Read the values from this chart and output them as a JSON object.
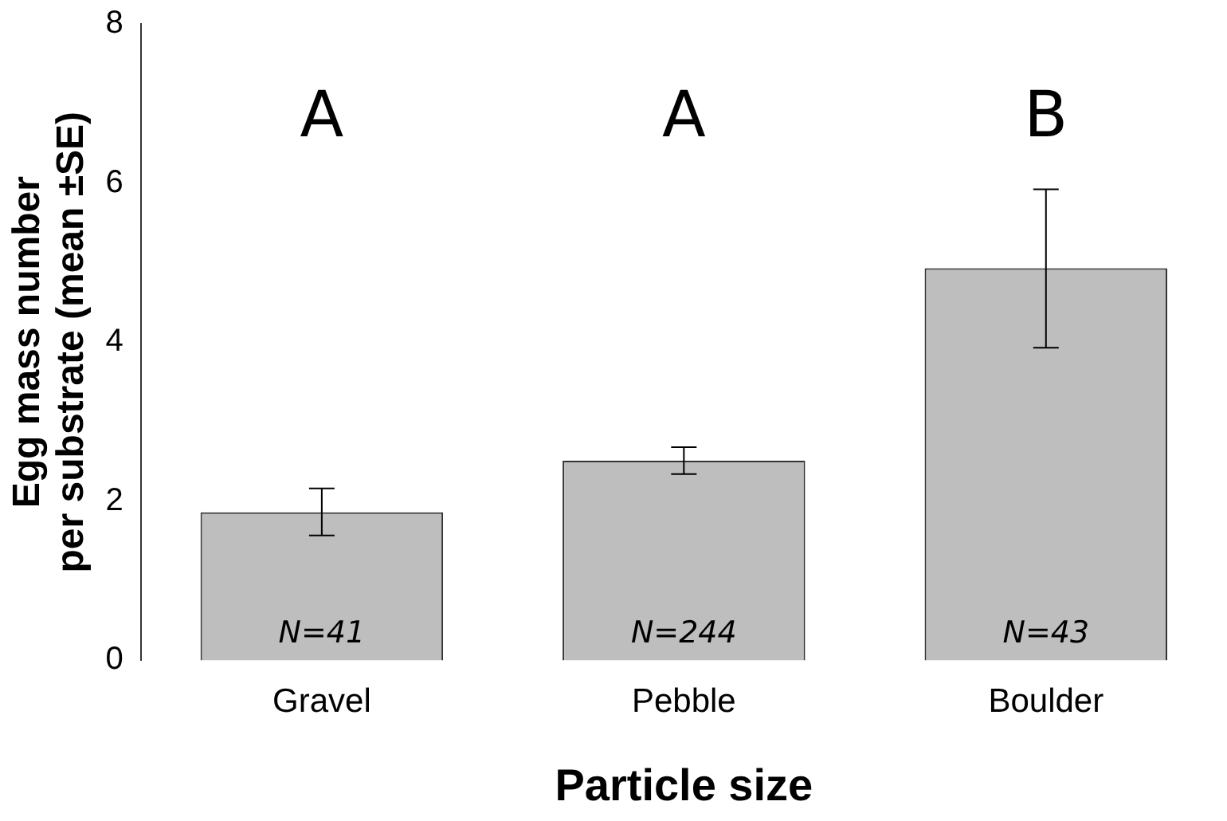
{
  "chart_data": {
    "type": "bar",
    "xlabel": "Particle size",
    "ylabel": "Egg mass number\nper substrate (mean ±SE)",
    "categories": [
      "Gravel",
      "Pebble",
      "Boulder"
    ],
    "values": [
      1.86,
      2.51,
      4.93
    ],
    "errors": [
      [
        1.57,
        2.16
      ],
      [
        2.34,
        2.68
      ],
      [
        3.93,
        5.92
      ]
    ],
    "color": "#bebebe",
    "ylim": [
      0,
      8
    ],
    "yticks": [
      0,
      2,
      4,
      6,
      8
    ],
    "grid": false,
    "legend": false,
    "annotations": [
      "A",
      "A",
      "B",
      "N=41",
      "N=244",
      "N=43"
    ]
  }
}
